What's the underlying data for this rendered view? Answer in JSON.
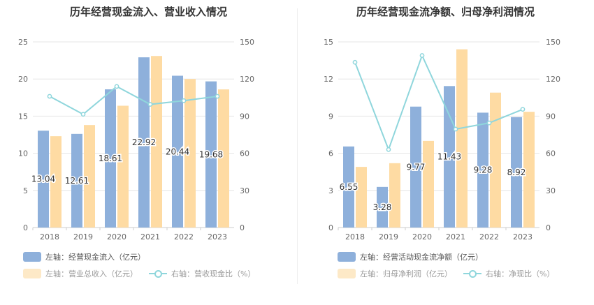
{
  "chart_data": [
    {
      "type": "bar",
      "title": "历年经营现金流入、营业收入情况",
      "categories": [
        "2018",
        "2019",
        "2020",
        "2021",
        "2022",
        "2023"
      ],
      "left_axis": {
        "ticks": [
          "0",
          "5",
          "10",
          "15",
          "20",
          "25"
        ],
        "ylim": [
          0,
          25
        ]
      },
      "right_axis": {
        "ticks": [
          "0",
          "30",
          "60",
          "90",
          "120",
          "150"
        ],
        "ylim": [
          0,
          150
        ]
      },
      "series": [
        {
          "name": "左轴：经营现金流入（亿元）",
          "type": "bar",
          "axis": "left",
          "color": "#8eb0db",
          "values": [
            13.04,
            12.61,
            18.61,
            22.92,
            20.44,
            19.68
          ],
          "labels": [
            "13.04",
            "12.61",
            "18.61",
            "22.92",
            "20.44",
            "19.68"
          ]
        },
        {
          "name": "左轴：营业总收入（亿元）",
          "type": "bar",
          "axis": "left",
          "color": "#fedba3",
          "values": [
            12.3,
            13.8,
            16.4,
            23.1,
            20.0,
            18.6
          ]
        },
        {
          "name": "右轴：营收现金比（%）",
          "type": "line",
          "axis": "right",
          "color": "#8fd6dc",
          "values": [
            106,
            91.5,
            114,
            99.5,
            102.5,
            106
          ]
        }
      ]
    },
    {
      "type": "bar",
      "title": "历年经营现金流净额、归母净利润情况",
      "categories": [
        "2018",
        "2019",
        "2020",
        "2021",
        "2022",
        "2023"
      ],
      "left_axis": {
        "ticks": [
          "0",
          "3",
          "6",
          "9",
          "12",
          "15"
        ],
        "ylim": [
          0,
          15
        ]
      },
      "right_axis": {
        "ticks": [
          "0",
          "30",
          "60",
          "90",
          "120",
          "150"
        ],
        "ylim": [
          0,
          150
        ]
      },
      "series": [
        {
          "name": "左轴：经营活动现金流净额（亿元）",
          "type": "bar",
          "axis": "left",
          "color": "#8eb0db",
          "values": [
            6.55,
            3.28,
            9.77,
            11.43,
            9.28,
            8.92
          ],
          "labels": [
            "6.55",
            "3.28",
            "9.77",
            "11.43",
            "9.28",
            "8.92"
          ]
        },
        {
          "name": "左轴：归母净利润（亿元）",
          "type": "bar",
          "axis": "left",
          "color": "#fedba3",
          "values": [
            4.9,
            5.2,
            7.0,
            14.4,
            10.9,
            9.35
          ]
        },
        {
          "name": "右轴：净现比（%）",
          "type": "line",
          "axis": "right",
          "color": "#8fd6dc",
          "values": [
            133.5,
            63,
            139,
            79.5,
            84.5,
            95.5
          ]
        }
      ]
    }
  ]
}
